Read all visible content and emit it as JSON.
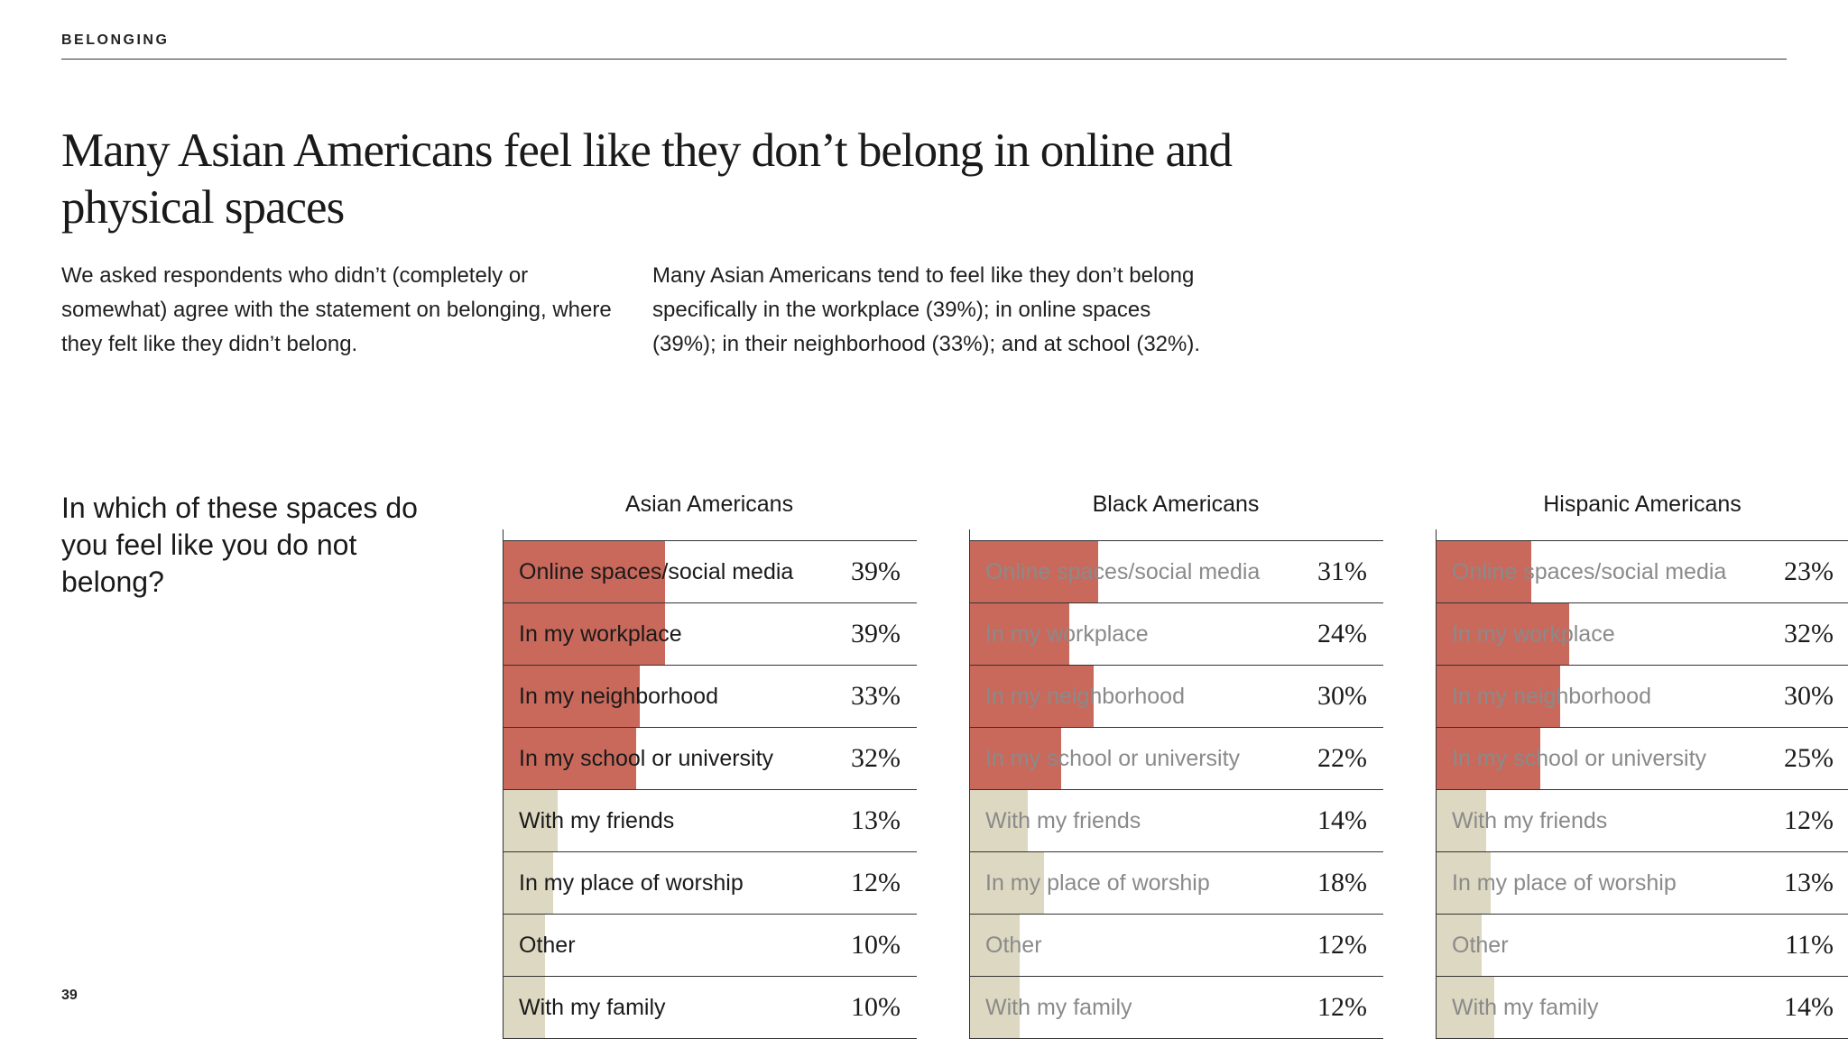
{
  "section_label": "BELONGING",
  "title": "Many Asian Americans feel like they don’t belong in online and physical spaces",
  "intro_left": "We asked respondents who didn’t (completely or somewhat) agree with the statement on belonging, where they felt like they didn’t belong.",
  "intro_right": "Many Asian Americans tend to feel like they don’t belong specifically in the workplace (39%); in online spaces (39%); in their neighborhood (33%); and at school (32%).",
  "question": "In which of these spaces do you feel like you do not belong?",
  "page_number": "39",
  "colors": {
    "highlight_bar": "#c9695b",
    "secondary_bar": "#ddd8c1",
    "muted_text": "#8a8a8a",
    "rule": "#333333"
  },
  "chart_data": [
    {
      "type": "bar",
      "title": "Asian Americans",
      "categories": [
        "Online spaces/social media",
        "In my workplace",
        "In my neighborhood",
        "In my school or university",
        "With my friends",
        "In my place of worship",
        "Other",
        "With my family"
      ],
      "values": [
        39,
        39,
        33,
        32,
        13,
        12,
        10,
        10
      ],
      "value_labels": [
        "39%",
        "39%",
        "33%",
        "32%",
        "13%",
        "12%",
        "10%",
        "10%"
      ],
      "highlight": [
        true,
        true,
        true,
        true,
        false,
        false,
        false,
        false
      ],
      "xlim": [
        0,
        100
      ],
      "muted_labels": false
    },
    {
      "type": "bar",
      "title": "Black Americans",
      "categories": [
        "Online spaces/social media",
        "In my workplace",
        "In my neighborhood",
        "In my school or university",
        "With my friends",
        "In my place of worship",
        "Other",
        "With my family"
      ],
      "values": [
        31,
        24,
        30,
        22,
        14,
        18,
        12,
        12
      ],
      "value_labels": [
        "31%",
        "24%",
        "30%",
        "22%",
        "14%",
        "18%",
        "12%",
        "12%"
      ],
      "highlight": [
        true,
        true,
        true,
        true,
        false,
        false,
        false,
        false
      ],
      "xlim": [
        0,
        100
      ],
      "muted_labels": true
    },
    {
      "type": "bar",
      "title": "Hispanic Americans",
      "categories": [
        "Online spaces/social media",
        "In my workplace",
        "In my neighborhood",
        "In my school or university",
        "With my friends",
        "In my place of worship",
        "Other",
        "With my family"
      ],
      "values": [
        23,
        32,
        30,
        25,
        12,
        13,
        11,
        14
      ],
      "value_labels": [
        "23%",
        "32%",
        "30%",
        "25%",
        "12%",
        "13%",
        "11%",
        "14%"
      ],
      "highlight": [
        true,
        true,
        true,
        true,
        false,
        false,
        false,
        false
      ],
      "xlim": [
        0,
        100
      ],
      "muted_labels": true
    }
  ]
}
